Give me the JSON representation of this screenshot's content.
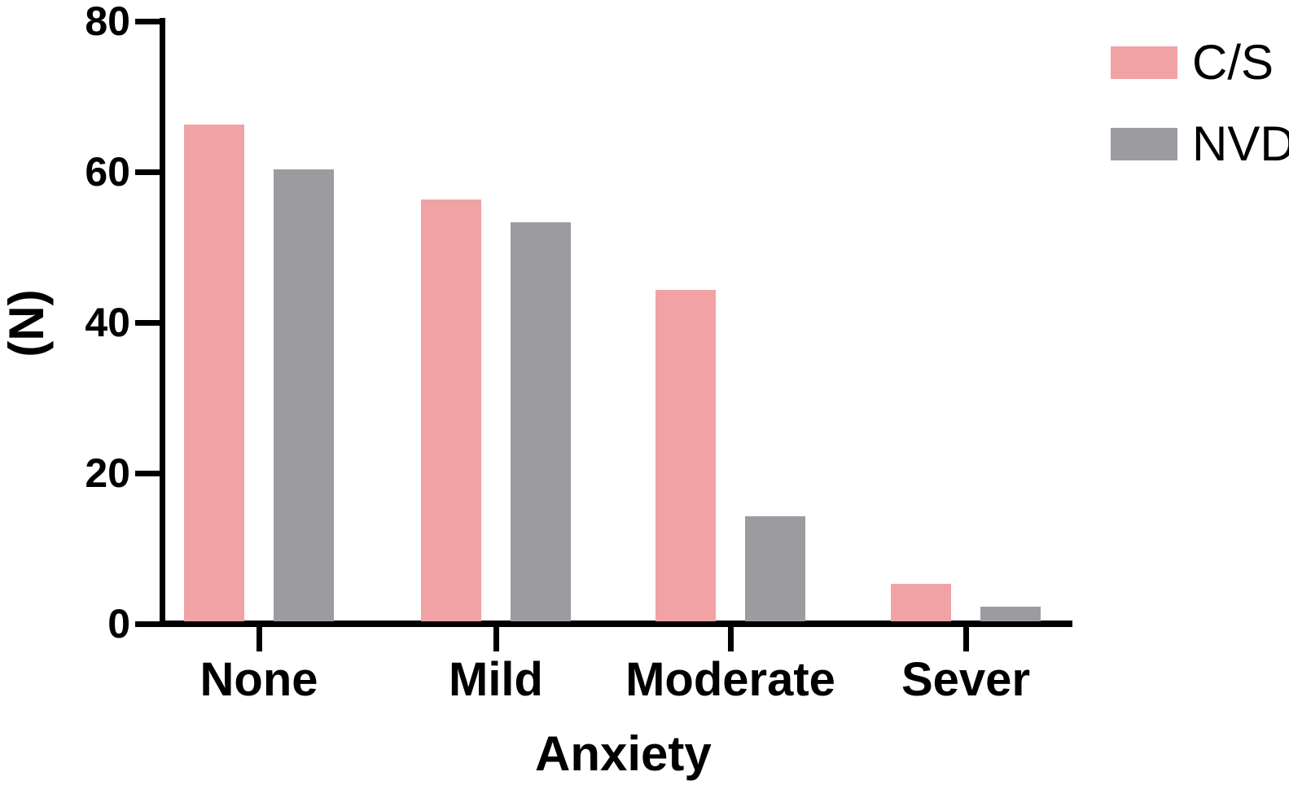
{
  "chart_data": {
    "type": "bar",
    "title": "",
    "xlabel": "Anxiety",
    "ylabel": "(N)",
    "categories": [
      "None",
      "Mild",
      "Moderate",
      "Sever"
    ],
    "series": [
      {
        "name": "C/S",
        "color": "#F1A2A5",
        "values": [
          66,
          56,
          44,
          5
        ]
      },
      {
        "name": "NVD",
        "color": "#9C9CA0",
        "values": [
          60,
          53,
          14,
          2
        ]
      }
    ],
    "ylim": [
      0,
      80
    ],
    "yticks": [
      0,
      20,
      40,
      60,
      80
    ],
    "grid": false,
    "legend_position": "top-right",
    "axis_color": "#000000",
    "background_color": "#FFFFFF"
  }
}
